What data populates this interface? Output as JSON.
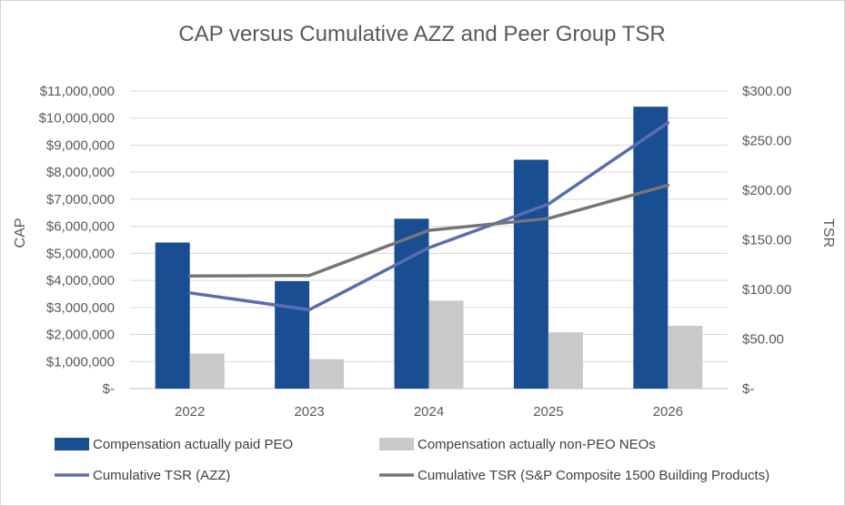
{
  "chart_data": {
    "type": "bar",
    "title": "CAP versus Cumulative AZZ and Peer Group TSR",
    "categories": [
      "2022",
      "2023",
      "2024",
      "2025",
      "2026"
    ],
    "ylabel": "CAP",
    "y2label": "TSR",
    "ylim": [
      0,
      11000000
    ],
    "y2lim": [
      0,
      300
    ],
    "yticks": [
      "$-",
      "$1,000,000",
      "$2,000,000",
      "$3,000,000",
      "$4,000,000",
      "$5,000,000",
      "$6,000,000",
      "$7,000,000",
      "$8,000,000",
      "$9,000,000",
      "$10,000,000",
      "$11,000,000"
    ],
    "y2ticks": [
      "$-",
      "$50.00",
      "$100.00",
      "$150.00",
      "$200.00",
      "$250.00",
      "$300.00"
    ],
    "grid": true,
    "legend_position": "bottom",
    "series": [
      {
        "name": "Compensation actually paid PEO",
        "type": "bar",
        "axis": "left",
        "color": "#1a4e93",
        "values": [
          5400000,
          3970000,
          6280000,
          8460000,
          10420000
        ]
      },
      {
        "name": "Compensation actually non-PEO NEOs",
        "type": "bar",
        "axis": "left",
        "color": "#c8c9cb",
        "values": [
          1300000,
          1090000,
          3250000,
          2080000,
          2320000
        ]
      },
      {
        "name": "Cumulative TSR (AZZ)",
        "type": "line",
        "axis": "right",
        "color": "#5b6db0",
        "values": [
          96.5,
          79.5,
          142,
          186,
          268
        ]
      },
      {
        "name": "Cumulative TSR (S&P Composite 1500 Building Products)",
        "type": "line",
        "axis": "right",
        "color": "#767676",
        "values": [
          113.5,
          114,
          159.5,
          171.5,
          205
        ]
      }
    ]
  }
}
